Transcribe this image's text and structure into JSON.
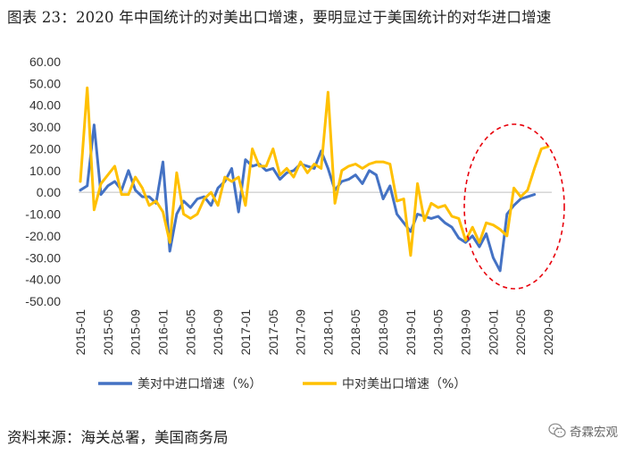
{
  "header": {
    "title": "图表 23：2020 年中国统计的对美出口增速，要明显过于美国统计的对华进口增速"
  },
  "footer": {
    "source": "资料来源：海关总署，美国商务局",
    "watermark": "奇霖宏观"
  },
  "colors": {
    "series_blue": "#4472c4",
    "series_gold": "#ffc000",
    "highlight_ellipse": "#e8000b"
  },
  "chart_data": {
    "type": "line",
    "title": "",
    "xlabel": "",
    "ylabel": "",
    "ylim": [
      -50,
      60
    ],
    "yticks": [
      60,
      50,
      40,
      30,
      20,
      10,
      0,
      -10,
      -20,
      -30,
      -40,
      -50
    ],
    "ytick_labels": [
      "60.00",
      "50.00",
      "40.00",
      "30.00",
      "20.00",
      "10.00",
      "0.00",
      "-10.00",
      "-20.00",
      "-30.00",
      "-40.00",
      "-50.00"
    ],
    "x": [
      "2015-01",
      "2015-02",
      "2015-03",
      "2015-04",
      "2015-05",
      "2015-06",
      "2015-07",
      "2015-08",
      "2015-09",
      "2015-10",
      "2015-11",
      "2015-12",
      "2016-01",
      "2016-02",
      "2016-03",
      "2016-04",
      "2016-05",
      "2016-06",
      "2016-07",
      "2016-08",
      "2016-09",
      "2016-10",
      "2016-11",
      "2016-12",
      "2017-01",
      "2017-02",
      "2017-03",
      "2017-04",
      "2017-05",
      "2017-06",
      "2017-07",
      "2017-08",
      "2017-09",
      "2017-10",
      "2017-11",
      "2017-12",
      "2018-01",
      "2018-02",
      "2018-03",
      "2018-04",
      "2018-05",
      "2018-06",
      "2018-07",
      "2018-08",
      "2018-09",
      "2018-10",
      "2018-11",
      "2018-12",
      "2019-01",
      "2019-02",
      "2019-03",
      "2019-04",
      "2019-05",
      "2019-06",
      "2019-07",
      "2019-08",
      "2019-09",
      "2019-10",
      "2019-11",
      "2019-12",
      "2020-01",
      "2020-02",
      "2020-03",
      "2020-04",
      "2020-05",
      "2020-06",
      "2020-07",
      "2020-08",
      "2020-09"
    ],
    "xtick_labels": [
      "2015-01",
      "2015-05",
      "2015-09",
      "2016-01",
      "2016-05",
      "2016-09",
      "2017-01",
      "2017-05",
      "2017-09",
      "2018-01",
      "2018-05",
      "2018-09",
      "2019-01",
      "2019-05",
      "2019-09",
      "2020-01",
      "2020-05",
      "2020-09"
    ],
    "series": [
      {
        "name": "美对中进口增速（%）",
        "color": "#4472c4",
        "values": [
          1,
          3,
          31,
          -1,
          3,
          5,
          1,
          10,
          1,
          -2,
          -2,
          -5,
          14,
          -27,
          -10,
          -4,
          -7,
          -3,
          -2,
          -6,
          2,
          5,
          11,
          -9,
          15,
          12,
          13,
          10,
          11,
          6,
          9,
          10,
          13,
          12,
          11,
          19,
          11,
          1,
          5,
          6,
          8,
          4,
          10,
          8,
          -3,
          3,
          -10,
          -14,
          -18,
          -10,
          -11,
          -12,
          -11,
          -14,
          -16,
          -21,
          -23,
          -20,
          -25,
          -19,
          -30,
          -36,
          -10,
          -6,
          -3,
          -2,
          -1,
          null,
          null
        ]
      },
      {
        "name": "中对美出口增速（%）",
        "color": "#ffc000",
        "values": [
          5,
          48,
          -8,
          4,
          8,
          12,
          -1,
          -1,
          7,
          2,
          -6,
          -4,
          -9,
          -23,
          9,
          -10,
          -12,
          -10,
          -3,
          0,
          -6,
          7,
          5,
          7,
          -6,
          20,
          12,
          12,
          20,
          8,
          11,
          7,
          14,
          9,
          13,
          11,
          46,
          -5,
          10,
          12,
          13,
          11,
          13,
          14,
          14,
          13,
          -4,
          -3,
          -29,
          4,
          -13,
          -5,
          -7,
          -6,
          -11,
          -12,
          -22,
          -16,
          -23,
          -14,
          -15,
          -17,
          -20,
          2,
          -2,
          1,
          11,
          20,
          21
        ]
      }
    ],
    "legend_position": "bottom",
    "grid": false
  }
}
